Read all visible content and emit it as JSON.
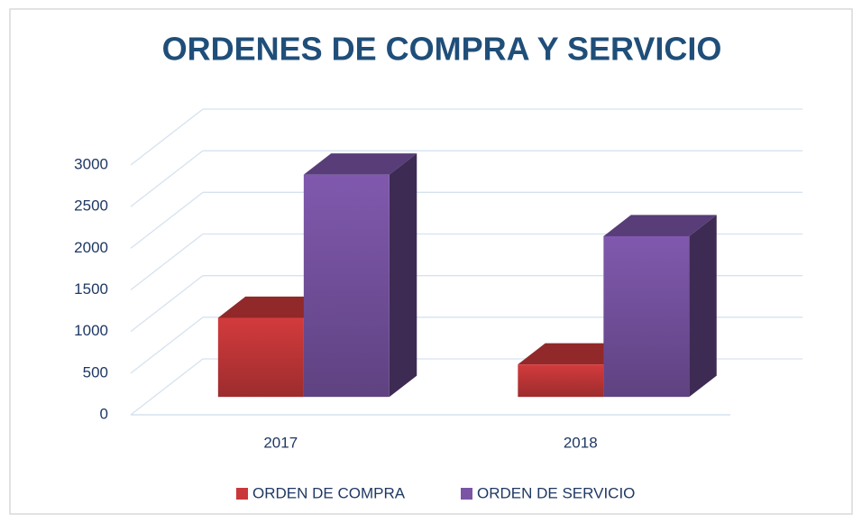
{
  "chart_data": {
    "type": "bar3d",
    "title": "ORDENES DE COMPRA Y SERVICIO",
    "categories": [
      "2017",
      "2018"
    ],
    "series": [
      {
        "name": "ORDEN DE COMPRA",
        "color": "#c9383a",
        "values": [
          950,
          390
        ]
      },
      {
        "name": "ORDEN DE SERVICIO",
        "color": "#7a55a6",
        "values": [
          2670,
          1930
        ]
      }
    ],
    "ylim": [
      0,
      3000
    ],
    "yticks": [
      0,
      500,
      1000,
      1500,
      2000,
      2500,
      3000
    ],
    "grid": true,
    "legend": "bottom"
  }
}
